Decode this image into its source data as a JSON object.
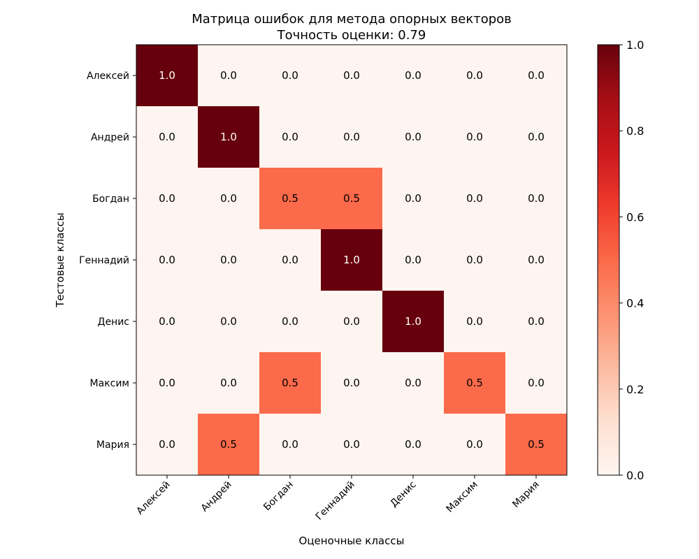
{
  "chart_data": {
    "type": "heatmap",
    "title": "Матрица ошибок для метода опорных векторов",
    "subtitle": "Точность оценки: 0.79",
    "xlabel": "Оценочные классы",
    "ylabel": "Тестовые классы",
    "x_categories": [
      "Алексей",
      "Андрей",
      "Богдан",
      "Геннадий",
      "Денис",
      "Максим",
      "Мария"
    ],
    "y_categories": [
      "Алексей",
      "Андрей",
      "Богдан",
      "Геннадий",
      "Денис",
      "Максим",
      "Мария"
    ],
    "values": [
      [
        1.0,
        0.0,
        0.0,
        0.0,
        0.0,
        0.0,
        0.0
      ],
      [
        0.0,
        1.0,
        0.0,
        0.0,
        0.0,
        0.0,
        0.0
      ],
      [
        0.0,
        0.0,
        0.5,
        0.5,
        0.0,
        0.0,
        0.0
      ],
      [
        0.0,
        0.0,
        0.0,
        1.0,
        0.0,
        0.0,
        0.0
      ],
      [
        0.0,
        0.0,
        0.0,
        0.0,
        1.0,
        0.0,
        0.0
      ],
      [
        0.0,
        0.0,
        0.5,
        0.0,
        0.0,
        0.5,
        0.0
      ],
      [
        0.0,
        0.5,
        0.0,
        0.0,
        0.0,
        0.0,
        0.5
      ]
    ],
    "colormap": "Reds",
    "colormap_stops": [
      "#fff5f0",
      "#fee0d2",
      "#fcbba1",
      "#fc9272",
      "#fb6a4a",
      "#ef3b2c",
      "#cb181d",
      "#a50f15",
      "#67000d"
    ],
    "colorbar": {
      "range": [
        0.0,
        1.0
      ],
      "ticks": [
        0.0,
        0.2,
        0.4,
        0.6,
        0.8,
        1.0
      ],
      "tick_labels": [
        "0.0",
        "0.2",
        "0.4",
        "0.6",
        "0.8",
        "1.0"
      ]
    },
    "value_format_decimals": 1,
    "text_threshold": 0.5
  }
}
